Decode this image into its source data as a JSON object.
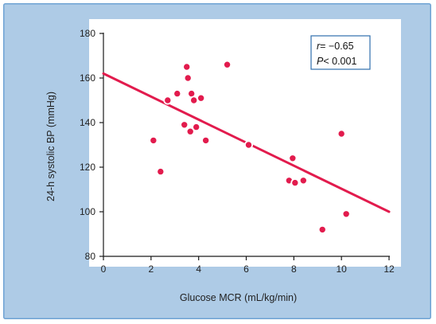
{
  "colors": {
    "outer_background": "#aecbe6",
    "outer_border": "#6fa3d4",
    "plot_background": "#ffffff",
    "accent": "#e21b4d",
    "axis": "#1a1a1a",
    "stat_box_border": "#2f6fae"
  },
  "chart_data": {
    "type": "scatter",
    "title": "",
    "xlabel": "Glucose MCR (mL/kg/min)",
    "ylabel": "24-h systolic BP (mmHg)",
    "xlim": [
      0,
      12
    ],
    "ylim": [
      80,
      180
    ],
    "xticks": [
      0,
      2,
      4,
      6,
      8,
      10,
      12
    ],
    "yticks": [
      80,
      100,
      120,
      140,
      160,
      180
    ],
    "grid": false,
    "points": [
      {
        "x": 2.1,
        "y": 132
      },
      {
        "x": 2.4,
        "y": 118
      },
      {
        "x": 2.7,
        "y": 150
      },
      {
        "x": 3.1,
        "y": 153
      },
      {
        "x": 3.4,
        "y": 139
      },
      {
        "x": 3.5,
        "y": 165
      },
      {
        "x": 3.55,
        "y": 160
      },
      {
        "x": 3.65,
        "y": 136
      },
      {
        "x": 3.7,
        "y": 153
      },
      {
        "x": 3.8,
        "y": 150
      },
      {
        "x": 3.9,
        "y": 138
      },
      {
        "x": 4.1,
        "y": 151
      },
      {
        "x": 4.3,
        "y": 132
      },
      {
        "x": 5.2,
        "y": 166
      },
      {
        "x": 6.1,
        "y": 130
      },
      {
        "x": 7.8,
        "y": 114
      },
      {
        "x": 7.95,
        "y": 124
      },
      {
        "x": 8.05,
        "y": 113
      },
      {
        "x": 8.4,
        "y": 114
      },
      {
        "x": 9.2,
        "y": 92
      },
      {
        "x": 10.0,
        "y": 135
      },
      {
        "x": 10.2,
        "y": 99
      }
    ],
    "regression_line": {
      "x": [
        0,
        12
      ],
      "y": [
        162,
        100
      ]
    },
    "annotation": {
      "r_symbol": "r",
      "r_value": "= −0.65",
      "p_symbol": "P",
      "p_value": "< 0.001",
      "placement": "top-right"
    }
  }
}
